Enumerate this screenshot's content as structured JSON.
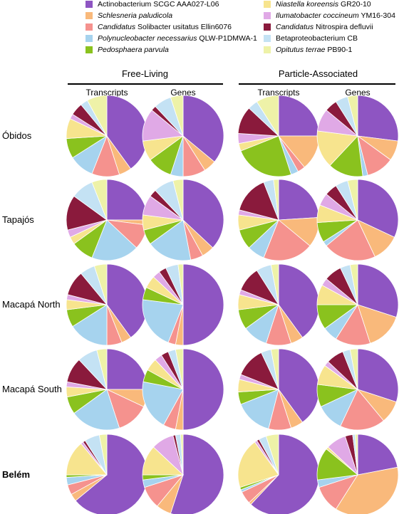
{
  "chart_data": {
    "type": "pie",
    "legend": {
      "placement": "top",
      "entries": [
        {
          "parts": [
            {
              "text": "Actinobacterium SCGC AAA027-L06",
              "italic": false
            }
          ],
          "color": "#8e55c2"
        },
        {
          "parts": [
            {
              "text": "Schlesneria paludicola",
              "italic": true
            }
          ],
          "color": "#f9b97b"
        },
        {
          "parts": [
            {
              "text": "Candidatus",
              "italic": true
            },
            {
              "text": " Solibacter usitatus Ellin6076",
              "italic": false
            }
          ],
          "color": "#f5928e"
        },
        {
          "parts": [
            {
              "text": "Polynucleobacter necessarius",
              "italic": true
            },
            {
              "text": " QLW-P1DMWA-1",
              "italic": false
            }
          ],
          "color": "#a6d3ee"
        },
        {
          "parts": [
            {
              "text": "Pedosphaera parvula",
              "italic": true
            }
          ],
          "color": "#8ac21e"
        },
        {
          "parts": [
            {
              "text": "Niastella koreensis",
              "italic": true
            },
            {
              "text": " GR20-10",
              "italic": false
            }
          ],
          "color": "#f7e48e"
        },
        {
          "parts": [
            {
              "text": "Ilumatobacter coccineum",
              "italic": true
            },
            {
              "text": " YM16-304",
              "italic": false
            }
          ],
          "color": "#e0a9e6"
        },
        {
          "parts": [
            {
              "text": "Candidatus",
              "italic": true
            },
            {
              "text": " Nitrospira defluvii",
              "italic": false
            }
          ],
          "color": "#8a1a3c"
        },
        {
          "parts": [
            {
              "text": "Betaproteobacterium CB",
              "italic": false
            }
          ],
          "color": "#c4e2f4"
        },
        {
          "parts": [
            {
              "text": "Opitutus terrae",
              "italic": true
            },
            {
              "text": " PB90-1",
              "italic": false
            }
          ],
          "color": "#eef2a8"
        }
      ]
    },
    "groups": [
      "Free-Living",
      "Particle-Associated"
    ],
    "columns": [
      "Transcripts",
      "Genes",
      "Transcripts",
      "Genes"
    ],
    "rows": [
      {
        "label": "Óbidos",
        "bold": false,
        "pies": [
          [
            40,
            5,
            11,
            10,
            8,
            8,
            2,
            5,
            3,
            8
          ],
          [
            36,
            5,
            9,
            5,
            10,
            8,
            13,
            2,
            7,
            5
          ],
          [
            25,
            14,
            3,
            3,
            24,
            3,
            4,
            11,
            4,
            9
          ],
          [
            27,
            8,
            11,
            2,
            14,
            15,
            9,
            5,
            5,
            4
          ]
        ]
      },
      {
        "label": "Tapajós",
        "bold": false,
        "pies": [
          [
            25,
            2,
            10,
            19,
            9,
            3,
            3,
            14,
            9,
            6
          ],
          [
            37,
            5,
            5,
            18,
            6,
            6,
            8,
            3,
            8,
            4
          ],
          [
            24,
            12,
            20,
            7,
            8,
            6,
            2,
            15,
            4,
            2
          ],
          [
            32,
            11,
            21,
            2,
            8,
            7,
            5,
            5,
            5,
            4
          ]
        ]
      },
      {
        "label": "Macapá North",
        "bold": false,
        "pies": [
          [
            40,
            4,
            6,
            16,
            7,
            4,
            2,
            10,
            6,
            5
          ],
          [
            50,
            3,
            3,
            21,
            5,
            5,
            3,
            3,
            5,
            2
          ],
          [
            40,
            5,
            10,
            10,
            8,
            6,
            2,
            10,
            6,
            3
          ],
          [
            30,
            15,
            14,
            6,
            10,
            8,
            3,
            7,
            4,
            3
          ]
        ]
      },
      {
        "label": "Macapá South",
        "bold": false,
        "pies": [
          [
            25,
            7,
            13,
            20,
            7,
            4,
            2,
            10,
            8,
            4
          ],
          [
            50,
            3,
            5,
            20,
            5,
            5,
            3,
            3,
            3,
            3
          ],
          [
            40,
            5,
            9,
            15,
            5,
            5,
            2,
            12,
            4,
            3
          ],
          [
            30,
            9,
            18,
            11,
            9,
            8,
            2,
            7,
            3,
            3
          ]
        ]
      },
      {
        "label": "Belém",
        "bold": true,
        "pies": [
          [
            64,
            3,
            4,
            3,
            1,
            14,
            1,
            1,
            6,
            3
          ],
          [
            55,
            6,
            9,
            3,
            2,
            12,
            9,
            1,
            2,
            1
          ],
          [
            62,
            1,
            5,
            1,
            1,
            20,
            1,
            1,
            3,
            5
          ],
          [
            22,
            37,
            11,
            3,
            13,
            1,
            8,
            3,
            1,
            1
          ]
        ]
      }
    ]
  }
}
